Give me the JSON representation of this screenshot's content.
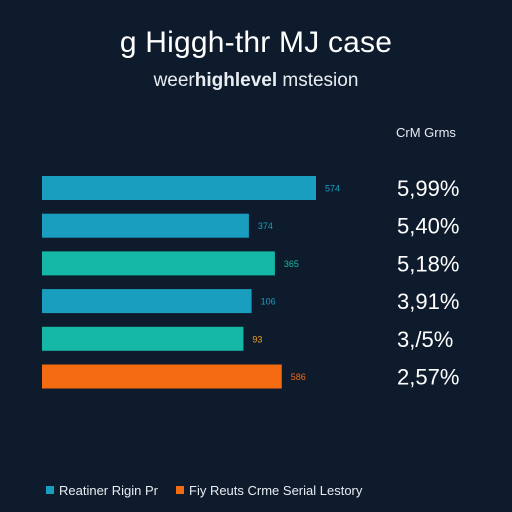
{
  "chart_data": {
    "type": "bar",
    "orientation": "horizontal",
    "title": "g Higgh-thr MJ case",
    "subtitle_prefix": "weer",
    "subtitle_bold": "highlevel",
    "subtitle_suffix": " mstesion",
    "column_header": "CrM Grms",
    "categories": [
      "",
      "",
      "",
      "",
      "",
      ""
    ],
    "series": [
      {
        "values": [
          574,
          374,
          365,
          106,
          93,
          586
        ],
        "bar_labels": [
          "574",
          "374",
          "365",
          "106",
          "93",
          "586"
        ],
        "percent_labels": [
          "5,99%",
          "5,40%",
          "5,18%",
          "3,91%",
          "3,/5%",
          "2,57%"
        ],
        "colors": [
          "#1a9ec0",
          "#1a9ec0",
          "#15b8a6",
          "#1a9ec0",
          "#15b8a6",
          "#f46b12"
        ],
        "label_colors": [
          "#1a9ec0",
          "#1a9ec0",
          "#15b8a6",
          "#1a9ec0",
          "#f0a020",
          "#f46b12"
        ]
      }
    ],
    "bar_lengths_relative": [
      1.0,
      0.755,
      0.85,
      0.765,
      0.735,
      0.875
    ],
    "grid": false,
    "legend_position": "bottom-left",
    "legend": [
      {
        "label": "Reatiner Rigin Pr",
        "color": "#1a9ec0"
      },
      {
        "label": "Fiy Reuts Crme Serial Lestory",
        "color": "#f46b12"
      }
    ]
  },
  "colors": {
    "background": "#0e1b2c",
    "text": "#ffffff"
  }
}
